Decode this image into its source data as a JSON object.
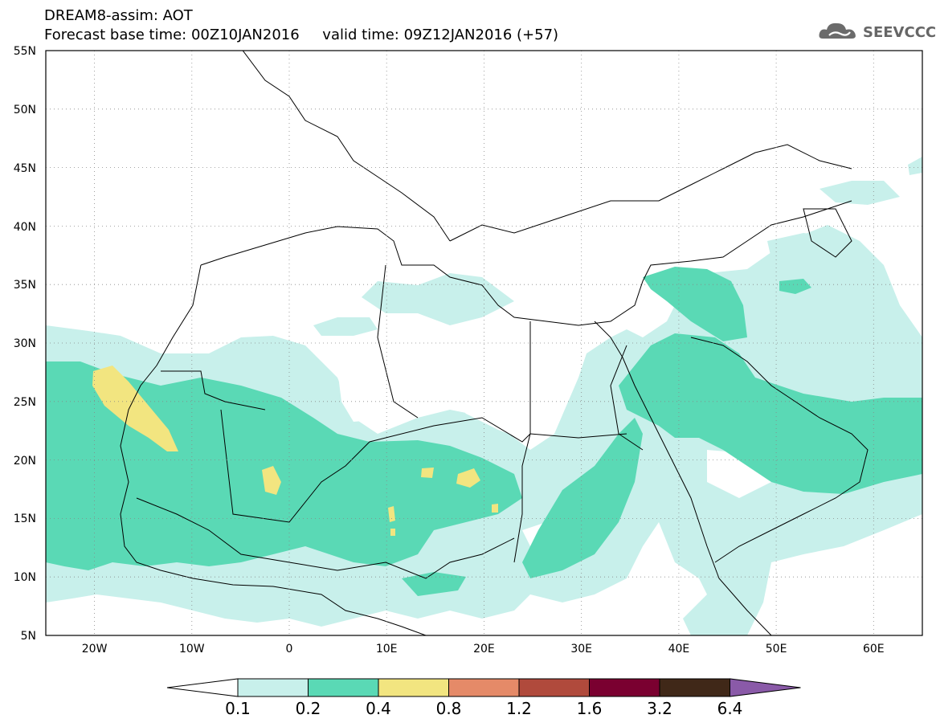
{
  "header": {
    "line1": "DREAM8-assim: AOT",
    "line2": "Forecast base time: 00Z10JAN2016     valid time: 09Z12JAN2016 (+57)"
  },
  "logo": {
    "text": "SEEVCCC",
    "icon": "cloud-icon"
  },
  "map": {
    "lon_range": [
      -25,
      65
    ],
    "lat_range": [
      5,
      55
    ],
    "lat_ticks": [
      "55N",
      "50N",
      "45N",
      "40N",
      "35N",
      "30N",
      "25N",
      "20N",
      "15N",
      "10N",
      "5N"
    ],
    "lon_ticks": [
      "20W",
      "10W",
      "0",
      "10E",
      "20E",
      "30E",
      "40E",
      "50E",
      "60E"
    ],
    "grid": "dotted"
  },
  "colorbar": {
    "labels": [
      "0.1",
      "0.2",
      "0.4",
      "0.8",
      "1.2",
      "1.6",
      "3.2",
      "6.4"
    ],
    "colors": [
      "#c8f0eb",
      "#5ad9b5",
      "#f2e580",
      "#e58a68",
      "#b04a3c",
      "#7a0030",
      "#402818",
      "#8a5aa8"
    ],
    "under_color": "#ffffff"
  }
}
